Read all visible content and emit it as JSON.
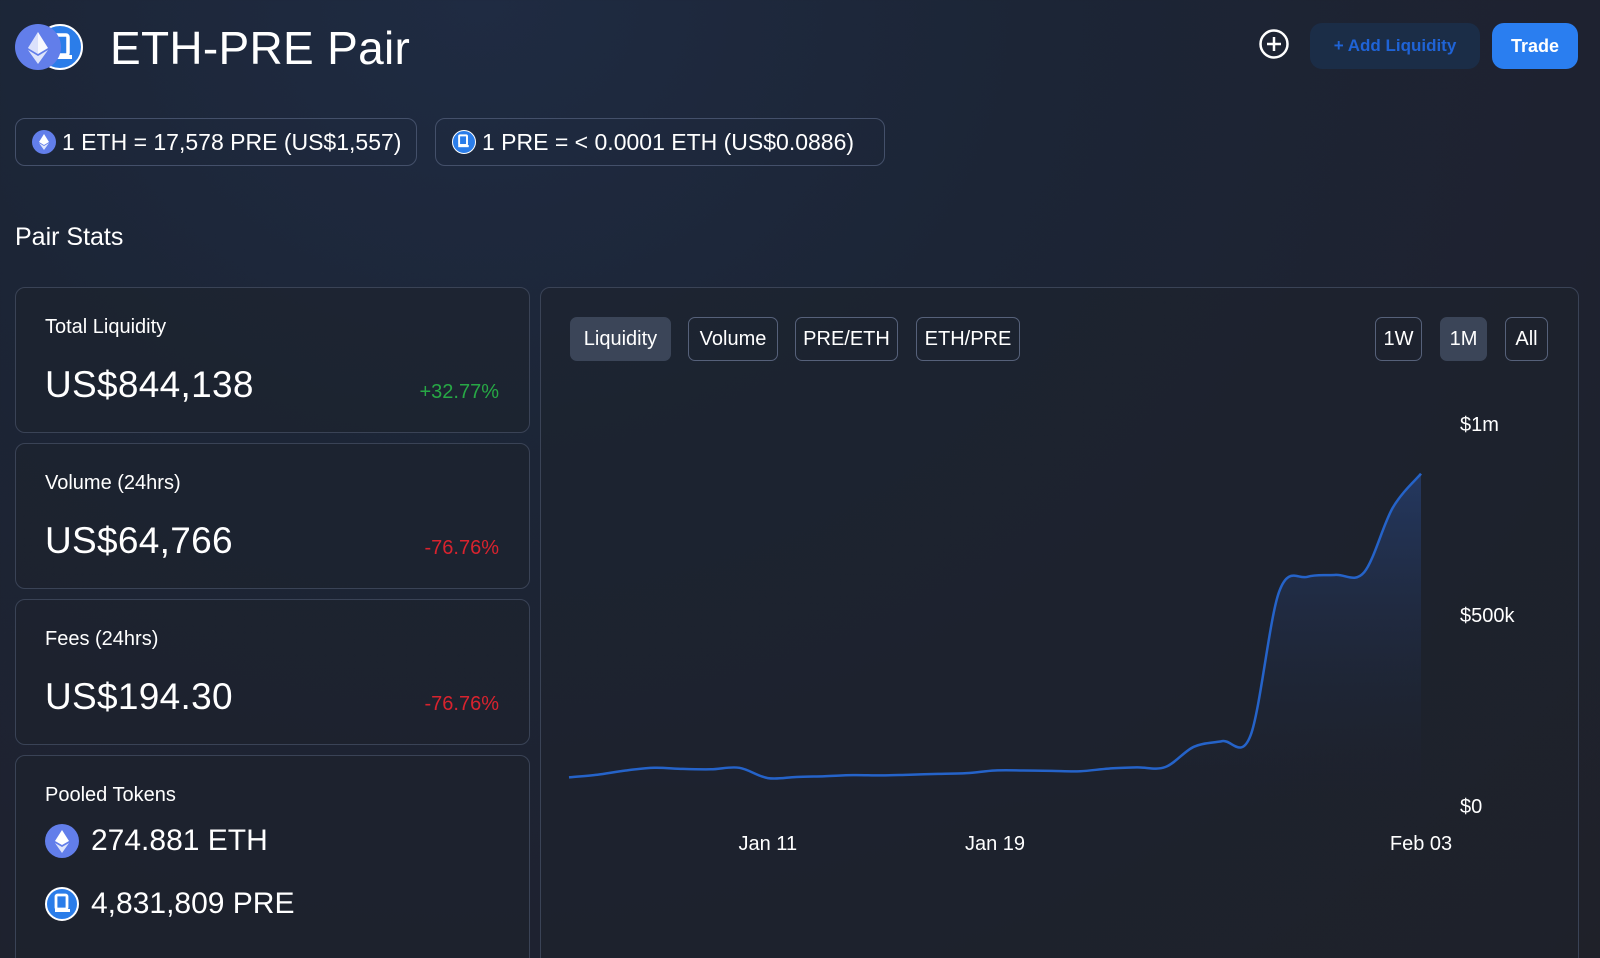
{
  "header": {
    "title": "ETH-PRE Pair",
    "add_liquidity_label": "+ Add Liquidity",
    "trade_label": "Trade",
    "icons": [
      "eth-token-icon",
      "pre-token-icon",
      "plus-circle-icon"
    ]
  },
  "rates": {
    "eth_rate": "1 ETH = 17,578 PRE (US$1,557)",
    "pre_rate": "1 PRE = < 0.0001 ETH (US$0.0886)"
  },
  "section_title": "Pair Stats",
  "stats": {
    "total_liquidity": {
      "label": "Total Liquidity",
      "value": "US$844,138",
      "change": "+32.77%"
    },
    "volume": {
      "label": "Volume (24hrs)",
      "value": "US$64,766",
      "change": "-76.76%"
    },
    "fees": {
      "label": "Fees (24hrs)",
      "value": "US$194.30",
      "change": "-76.76%"
    },
    "pooled": {
      "label": "Pooled Tokens",
      "eth": "274.881 ETH",
      "pre": "4,831,809 PRE"
    }
  },
  "colors": {
    "accent": "#2a7ef0",
    "positive": "#27a845",
    "negative": "#d8232e",
    "eth_icon": "#627eea",
    "pre_icon": "#2b7de9",
    "line": "#2563c9"
  },
  "chart_tabs": [
    "Liquidity",
    "Volume",
    "PRE/ETH",
    "ETH/PRE"
  ],
  "active_chart_tab": "Liquidity",
  "range_tabs": [
    "1W",
    "1M",
    "All"
  ],
  "active_range_tab": "1M",
  "chart_data": {
    "type": "area",
    "title": "",
    "xlabel": "",
    "ylabel": "",
    "x": [
      "2021-01-04",
      "2021-01-05",
      "2021-01-06",
      "2021-01-07",
      "2021-01-08",
      "2021-01-09",
      "2021-01-10",
      "2021-01-11",
      "2021-01-12",
      "2021-01-13",
      "2021-01-14",
      "2021-01-15",
      "2021-01-16",
      "2021-01-17",
      "2021-01-18",
      "2021-01-19",
      "2021-01-20",
      "2021-01-21",
      "2021-01-22",
      "2021-01-23",
      "2021-01-24",
      "2021-01-25",
      "2021-01-26",
      "2021-01-27",
      "2021-01-28",
      "2021-01-29",
      "2021-01-30",
      "2021-01-31",
      "2021-02-01",
      "2021-02-02",
      "2021-02-03"
    ],
    "values": [
      75000,
      82000,
      93000,
      100000,
      97000,
      96000,
      100000,
      73000,
      76000,
      78000,
      81000,
      80000,
      82000,
      84000,
      86000,
      93000,
      93000,
      92000,
      91000,
      98000,
      101000,
      102000,
      155000,
      170000,
      185000,
      560000,
      600000,
      605000,
      612000,
      780000,
      870000
    ],
    "x_ticks": [
      "Jan 11",
      "Jan 19",
      "Feb 03"
    ],
    "x_tick_dates": [
      "2021-01-11",
      "2021-01-19",
      "2021-02-03"
    ],
    "y_ticks": [
      "$0",
      "$500k",
      "$1m"
    ],
    "y_tick_values": [
      0,
      500000,
      1000000
    ],
    "ylim": [
      0,
      1000000
    ],
    "grid": false,
    "legend": "none"
  }
}
